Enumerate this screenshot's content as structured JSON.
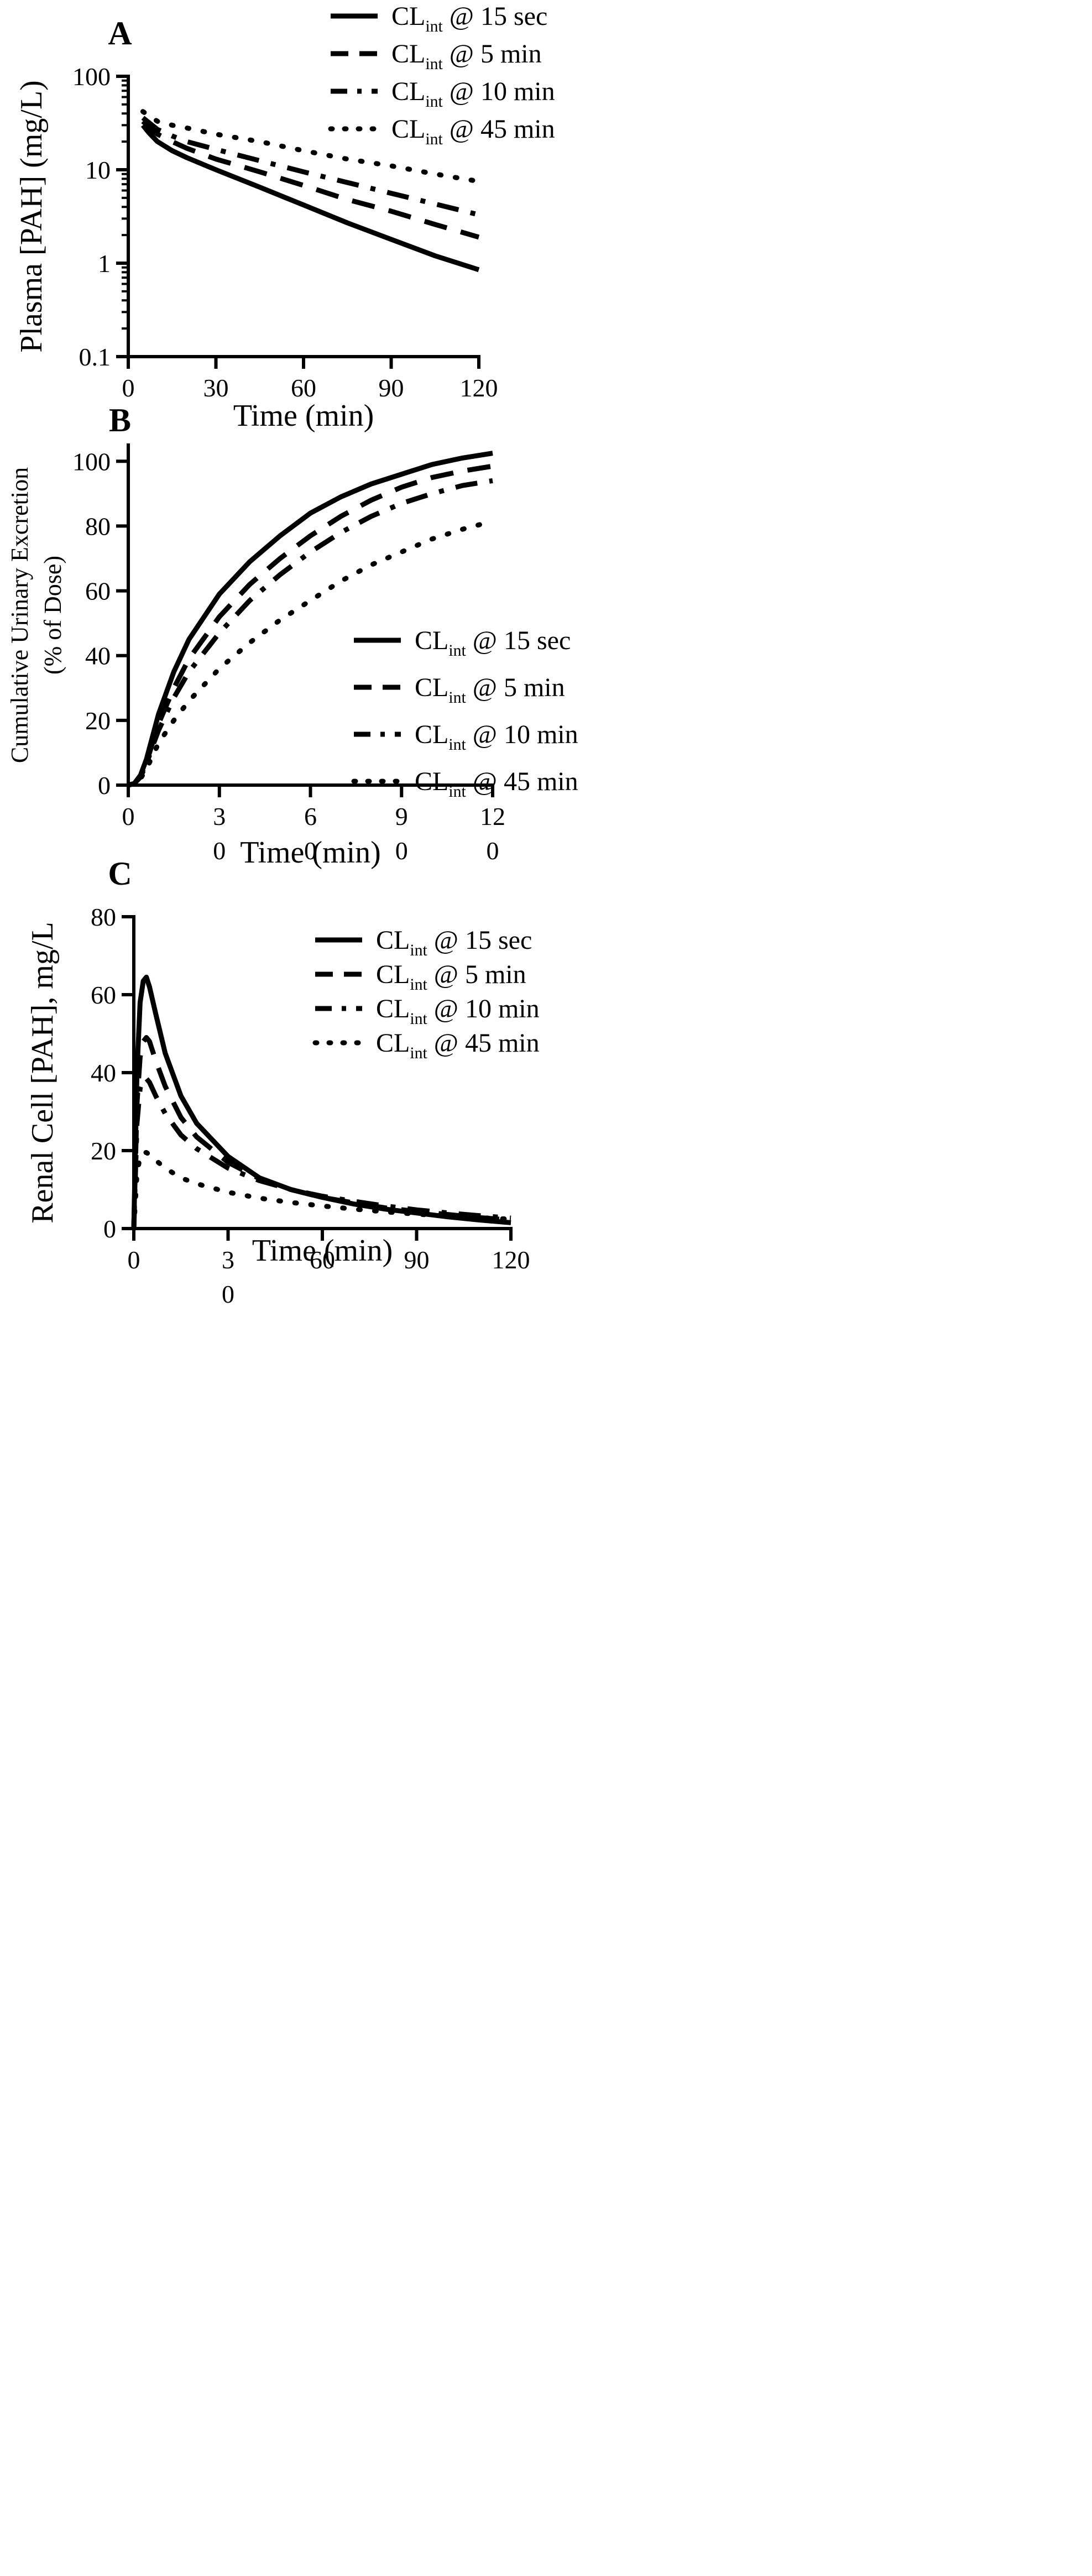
{
  "chart_data": [
    {
      "type": "line",
      "panel_label": "A",
      "title": "",
      "xlabel": "Time (min)",
      "ylabel": "Plasma [PAH] (mg/L)",
      "xlim": [
        0,
        120
      ],
      "ylim": [
        0.1,
        100
      ],
      "yscale": "log",
      "xticks": [
        0,
        30,
        60,
        90,
        120
      ],
      "xtick_labels": [
        "0",
        "30",
        "60",
        "90",
        "120"
      ],
      "yticks": [
        0.1,
        1,
        10,
        100
      ],
      "ytick_labels": [
        "0.1",
        "1",
        "10",
        "100"
      ],
      "legend_position": "top-right",
      "series": [
        {
          "name": "CLint @ 15 sec",
          "style": "solid",
          "x": [
            5,
            7,
            10,
            15,
            20,
            30,
            45,
            60,
            75,
            90,
            105,
            120
          ],
          "y": [
            30,
            25,
            20,
            16,
            13.5,
            10,
            6.5,
            4.2,
            2.7,
            1.8,
            1.2,
            0.85
          ]
        },
        {
          "name": "CLint @ 5 min",
          "style": "dashed",
          "x": [
            5,
            10,
            15,
            20,
            30,
            45,
            60,
            75,
            90,
            105,
            120
          ],
          "y": [
            33,
            24,
            20,
            17,
            13,
            9.5,
            6.8,
            4.8,
            3.6,
            2.6,
            1.9
          ]
        },
        {
          "name": "CLint @ 10 min",
          "style": "dashdot",
          "x": [
            5,
            10,
            15,
            20,
            30,
            45,
            60,
            75,
            90,
            105,
            120
          ],
          "y": [
            36,
            27,
            23,
            20,
            16.5,
            12.5,
            9.5,
            7.3,
            5.6,
            4.3,
            3.3
          ]
        },
        {
          "name": "CLint @ 45 min",
          "style": "dotted",
          "x": [
            5,
            10,
            15,
            20,
            30,
            45,
            60,
            75,
            90,
            105,
            120
          ],
          "y": [
            42,
            33,
            30,
            28,
            24,
            20,
            16,
            13,
            11,
            9,
            7.5
          ]
        }
      ]
    },
    {
      "type": "line",
      "panel_label": "B",
      "title": "",
      "xlabel": "Time (min)",
      "ylabel_line1": "Cumulative Urinary Excretion",
      "ylabel_line2": "(% of Dose)",
      "xlim": [
        0,
        120
      ],
      "ylim": [
        0,
        105
      ],
      "xticks": [
        0,
        30,
        60,
        90,
        120
      ],
      "xtick_labels": [
        "0",
        "3\n0",
        "6\n0",
        "9\n0",
        "12\n0"
      ],
      "yticks": [
        0,
        20,
        40,
        60,
        80,
        100
      ],
      "ytick_labels": [
        "0",
        "20",
        "40",
        "60",
        "80",
        "100"
      ],
      "legend_position": "center-right",
      "series": [
        {
          "name": "CLint @ 15 sec",
          "style": "solid",
          "x": [
            0,
            2,
            4,
            6,
            8,
            10,
            15,
            20,
            30,
            40,
            50,
            60,
            70,
            80,
            90,
            100,
            110,
            120
          ],
          "y": [
            0,
            0.5,
            3,
            8,
            15,
            22,
            35,
            45,
            59,
            69,
            77,
            84,
            89,
            93,
            96,
            99,
            101,
            102.5
          ]
        },
        {
          "name": "CLint @ 5 min",
          "style": "dashed",
          "x": [
            0,
            2,
            4,
            6,
            8,
            10,
            15,
            20,
            30,
            40,
            50,
            60,
            70,
            80,
            90,
            100,
            110,
            120
          ],
          "y": [
            0,
            0.5,
            3,
            7,
            13,
            19,
            30,
            39,
            52,
            62,
            70,
            77,
            83,
            88,
            92,
            95,
            97,
            98.5
          ]
        },
        {
          "name": "CLint @ 10 min",
          "style": "dashdot",
          "x": [
            0,
            2,
            4,
            6,
            8,
            10,
            15,
            20,
            30,
            40,
            50,
            60,
            70,
            80,
            90,
            100,
            110,
            120
          ],
          "y": [
            0,
            0.5,
            2.5,
            6.5,
            12,
            17,
            27,
            35,
            47,
            57,
            65,
            72,
            78,
            83,
            87,
            90,
            92.5,
            94
          ]
        },
        {
          "name": "CLint @ 45 min",
          "style": "dotted",
          "x": [
            0,
            2,
            4,
            6,
            8,
            10,
            15,
            20,
            30,
            40,
            50,
            60,
            70,
            80,
            90,
            100,
            110,
            120
          ],
          "y": [
            0,
            0.5,
            2,
            5,
            9,
            13,
            20,
            26,
            36,
            44,
            51,
            57,
            63,
            68,
            72,
            76,
            79,
            81.5
          ]
        }
      ]
    },
    {
      "type": "line",
      "panel_label": "C",
      "title": "",
      "xlabel": "Time (min)",
      "ylabel": "Renal Cell [PAH], mg/L",
      "xlim": [
        0,
        120
      ],
      "ylim": [
        0,
        80
      ],
      "xticks": [
        0,
        30,
        60,
        90,
        120
      ],
      "xtick_labels": [
        "0",
        "3\n0",
        "60",
        "90",
        "120"
      ],
      "yticks": [
        0,
        20,
        40,
        60,
        80
      ],
      "ytick_labels": [
        "0",
        "20",
        "40",
        "60",
        "80"
      ],
      "legend_position": "top-right",
      "series": [
        {
          "name": "CLint @ 15 sec",
          "style": "solid",
          "x": [
            0,
            1,
            2,
            3,
            4,
            5,
            7,
            10,
            15,
            20,
            30,
            40,
            50,
            60,
            70,
            80,
            90,
            100,
            110,
            120
          ],
          "y": [
            0,
            40,
            58,
            63.5,
            64.5,
            62,
            55,
            45,
            34,
            27,
            18.5,
            13,
            10,
            8,
            6.3,
            5,
            4,
            3,
            2.2,
            1.5
          ]
        },
        {
          "name": "CLint @ 5 min",
          "style": "dashed",
          "x": [
            0,
            1,
            2,
            3,
            4,
            5,
            7,
            10,
            15,
            20,
            30,
            40,
            50,
            60,
            70,
            80,
            90,
            100,
            110,
            120
          ],
          "y": [
            0,
            32,
            44,
            48,
            49,
            48,
            43,
            36.5,
            28.5,
            23.5,
            17,
            12.8,
            10,
            8,
            6.6,
            5.3,
            4.4,
            3.6,
            2.8,
            2.2
          ]
        },
        {
          "name": "CLint @ 10 min",
          "style": "dashdot",
          "x": [
            0,
            1,
            2,
            3,
            4,
            5,
            7,
            10,
            15,
            20,
            30,
            40,
            50,
            60,
            70,
            80,
            90,
            100,
            110,
            120
          ],
          "y": [
            0,
            27,
            36,
            38.5,
            38.5,
            37.5,
            34,
            29.5,
            24,
            20.5,
            15.5,
            12.3,
            10,
            8.3,
            7,
            5.8,
            4.8,
            4,
            3.3,
            2.7
          ]
        },
        {
          "name": "CLint @ 45 min",
          "style": "dotted",
          "x": [
            0,
            1,
            2,
            3,
            4,
            5,
            7,
            10,
            15,
            20,
            30,
            40,
            50,
            60,
            70,
            80,
            90,
            100,
            110,
            120
          ],
          "y": [
            0,
            14,
            18.5,
            19.5,
            19.5,
            19,
            17.5,
            15.5,
            13,
            11.5,
            9.3,
            7.8,
            6.7,
            5.8,
            5,
            4.3,
            3.7,
            3.2,
            2.8,
            2.4
          ]
        }
      ]
    }
  ],
  "legend_labels": [
    {
      "main": "CL",
      "sub": "int",
      "suffix": " @ 15 sec"
    },
    {
      "main": "CL",
      "sub": "int",
      "suffix": " @ 5 min"
    },
    {
      "main": "CL",
      "sub": "int",
      "suffix": " @ 10 min"
    },
    {
      "main": "CL",
      "sub": "int",
      "suffix": " @ 45 min"
    }
  ],
  "colors": {
    "line": "#000000",
    "background": "#ffffff"
  }
}
